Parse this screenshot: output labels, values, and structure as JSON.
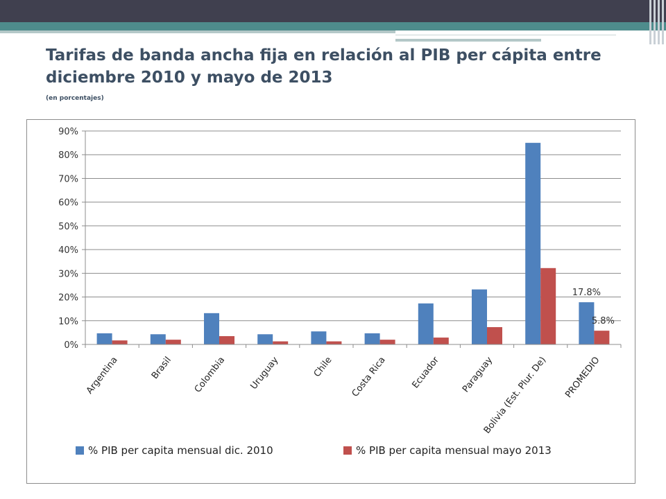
{
  "slide": {
    "title": "Tarifas de banda ancha fija en relación al PIB per cápita entre diciembre 2010 y mayo de 2013",
    "subtitle": "(en porcentajes)"
  },
  "chart_data": {
    "type": "bar",
    "categories": [
      "Argentina",
      "Brasil",
      "Colombia",
      "Uruguay",
      "Chile",
      "Costa Rica",
      "Ecuador",
      "Paraguay",
      "Bolivia (Est. Plur. De)",
      "PROMEDIO"
    ],
    "series": [
      {
        "name": "% PIB per capita mensual dic. 2010",
        "color": "#4f81bd",
        "values": [
          4.7,
          4.3,
          13.2,
          4.3,
          5.5,
          4.7,
          17.3,
          23.2,
          85.0,
          17.8
        ]
      },
      {
        "name": "% PIB per capita mensual mayo 2013",
        "color": "#c0504d",
        "values": [
          1.7,
          2.0,
          3.5,
          1.3,
          1.3,
          2.0,
          2.9,
          7.3,
          32.2,
          5.8
        ]
      }
    ],
    "ylim": [
      0,
      90
    ],
    "yticks": [
      "0%",
      "10%",
      "20%",
      "30%",
      "40%",
      "50%",
      "60%",
      "70%",
      "80%",
      "90%"
    ],
    "ytick_values": [
      0,
      10,
      20,
      30,
      40,
      50,
      60,
      70,
      80,
      90
    ],
    "data_labels": [
      {
        "category": "PROMEDIO",
        "series": 0,
        "text": "17.8%"
      },
      {
        "category": "PROMEDIO",
        "series": 1,
        "text": "5.8%"
      }
    ],
    "grid": true,
    "legend": "bottom"
  }
}
